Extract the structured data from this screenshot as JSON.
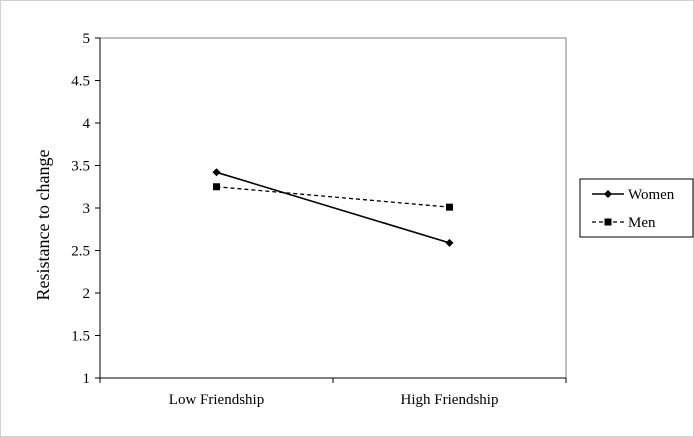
{
  "chart_data": {
    "type": "line",
    "title": "",
    "xlabel": "",
    "ylabel": "Resistance to change",
    "categories": [
      "Low Friendship",
      "High Friendship"
    ],
    "ylim": [
      1,
      5
    ],
    "yticks": [
      "1",
      "1.5",
      "2",
      "2.5",
      "3",
      "3.5",
      "4",
      "4.5",
      "5"
    ],
    "grid": false,
    "legend": "right",
    "series": [
      {
        "name": "Women",
        "values": [
          3.42,
          2.59
        ],
        "marker": "diamond",
        "line": "solid",
        "color": "#000000"
      },
      {
        "name": "Men",
        "values": [
          3.25,
          3.01
        ],
        "marker": "square",
        "line": "dashed",
        "color": "#000000"
      }
    ]
  }
}
